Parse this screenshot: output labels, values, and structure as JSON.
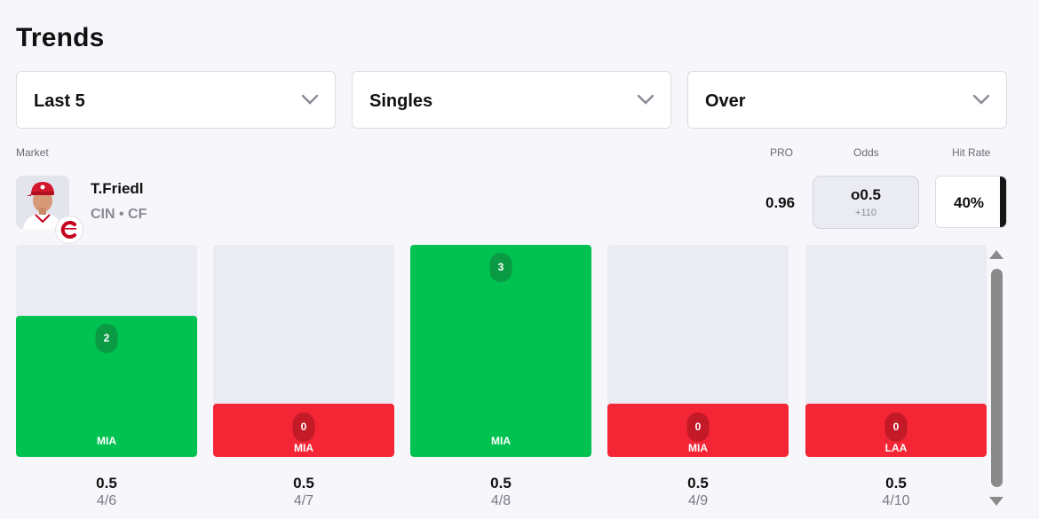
{
  "title": "Trends",
  "filters": [
    {
      "label": "Last 5",
      "icon": "chevron-down-icon"
    },
    {
      "label": "Singles",
      "icon": "chevron-down-icon"
    },
    {
      "label": "Over",
      "icon": "chevron-down-icon"
    }
  ],
  "headers": {
    "market": "Market",
    "pro": "PRO",
    "odds": "Odds",
    "hit_rate": "Hit Rate"
  },
  "player": {
    "name": "T.Friedl",
    "team_position": "CIN • CF",
    "pro": "0.96",
    "odds_line": "o0.5",
    "odds_price": "+110",
    "hit_rate": "40%",
    "hit_rate_value": 0.4
  },
  "colors": {
    "hit": "#00c250",
    "hit_pill": "#0a9a44",
    "miss": "#f42535",
    "miss_pill": "#c41a27",
    "empty": "#ebebf4"
  },
  "chart_data": {
    "type": "bar",
    "categories": [
      "4/6",
      "4/7",
      "4/8",
      "4/9",
      "4/10"
    ],
    "values": [
      2,
      0,
      3,
      0,
      0
    ],
    "line": 0.5,
    "line_labels": [
      "0.5",
      "0.5",
      "0.5",
      "0.5",
      "0.5"
    ],
    "opponents": [
      "MIA",
      "MIA",
      "MIA",
      "MIA",
      "LAA"
    ],
    "value_labels": [
      "2",
      "0",
      "3",
      "0",
      "0"
    ],
    "ylim": [
      0,
      3
    ]
  }
}
